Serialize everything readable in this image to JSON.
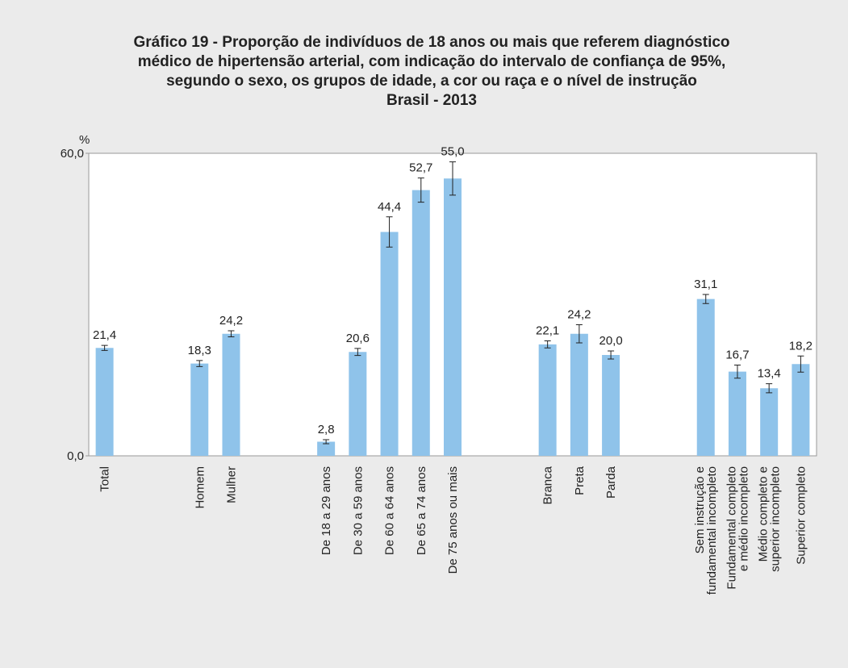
{
  "chart_data": {
    "type": "bar",
    "title": [
      "Gráfico 19 - Proporção de indivíduos de 18 anos ou mais que referem diagnóstico",
      "médico de hipertensão arterial, com indicação do intervalo de confiança de 95%,",
      "segundo o sexo, os grupos de idade, a cor ou raça e o nível de instrução",
      "Brasil - 2013"
    ],
    "y_unit": "%",
    "categories": [
      [
        "Total"
      ],
      null,
      null,
      [
        "Homem"
      ],
      [
        "Mulher"
      ],
      null,
      null,
      [
        "De 18 a 29 anos"
      ],
      [
        "De 30 a 59 anos"
      ],
      [
        "De 60 a 64 anos"
      ],
      [
        "De 65 a 74 anos"
      ],
      [
        "De 75 anos ou mais"
      ],
      null,
      null,
      [
        "Branca"
      ],
      [
        "Preta"
      ],
      [
        "Parda"
      ],
      null,
      null,
      [
        "Sem instrução e",
        "fundamental incompleto"
      ],
      [
        "Fundamental completo",
        "e médio incompleto"
      ],
      [
        "Médio completo e",
        "superior incompleto"
      ],
      [
        "Superior completo"
      ]
    ],
    "values": [
      21.4,
      null,
      null,
      18.3,
      24.2,
      null,
      null,
      2.8,
      20.6,
      44.4,
      52.7,
      55.0,
      null,
      null,
      22.1,
      24.2,
      20.0,
      null,
      null,
      31.1,
      16.7,
      13.4,
      18.2
    ],
    "value_labels": [
      "21,4",
      null,
      null,
      "18,3",
      "24,2",
      null,
      null,
      "2,8",
      "20,6",
      "44,4",
      "52,7",
      "55,0",
      null,
      null,
      "22,1",
      "24,2",
      "20,0",
      null,
      null,
      "31,1",
      "16,7",
      "13,4",
      "18,2"
    ],
    "errors": [
      0.5,
      null,
      null,
      0.6,
      0.6,
      null,
      null,
      0.4,
      0.7,
      3.0,
      2.4,
      3.3,
      null,
      null,
      0.7,
      1.8,
      0.8,
      null,
      null,
      0.9,
      1.3,
      0.9,
      1.6
    ],
    "color": "#8fc3ea",
    "ylim": [
      0,
      60
    ],
    "yticks": [
      {
        "value": 0,
        "label": "0,0"
      },
      {
        "value": 60,
        "label": "60,0"
      }
    ]
  }
}
